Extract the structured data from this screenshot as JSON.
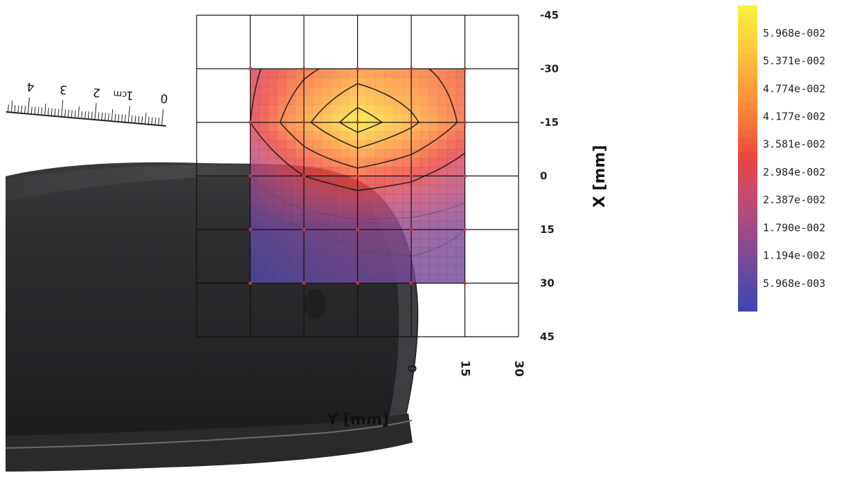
{
  "chart_data": {
    "type": "heatmap",
    "title": "",
    "colormap": [
      "#3d46b6",
      "#5d4aa2",
      "#844b91",
      "#aa4b80",
      "#cc4a6a",
      "#e9443e",
      "#f76f3a",
      "#fb9338",
      "#fdb53a",
      "#fdd63b",
      "#f5f23c"
    ],
    "x_axis": {
      "label": "Y [mm]",
      "ticks": [
        -60,
        -45,
        -30,
        -15,
        0,
        15,
        30
      ],
      "range": [
        -60,
        30
      ]
    },
    "y_axis": {
      "label": "X [mm]",
      "ticks": [
        -45,
        -30,
        -15,
        0,
        15,
        30,
        45
      ],
      "range": [
        -45,
        45
      ]
    },
    "measured_region": {
      "y": [
        -45,
        15
      ],
      "x": [
        -30,
        30
      ]
    },
    "grid": true,
    "y_coords_mm": [
      -45,
      -30,
      -15,
      0,
      15
    ],
    "x_coords_mm": [
      -30,
      -15,
      0,
      15,
      30
    ],
    "values": [
      [
        0.028,
        0.03,
        0.018,
        0.007,
        0.004
      ],
      [
        0.038,
        0.048,
        0.03,
        0.011,
        0.007
      ],
      [
        0.045,
        0.063,
        0.036,
        0.014,
        0.009
      ],
      [
        0.042,
        0.052,
        0.032,
        0.014,
        0.01
      ],
      [
        0.036,
        0.038,
        0.024,
        0.012,
        0.01
      ]
    ],
    "contour_levels": [
      0.012,
      0.018,
      0.03,
      0.04,
      0.05,
      0.058
    ],
    "legend": {
      "position": "right",
      "labels": [
        "5.968e-002",
        "5.371e-002",
        "4.774e-002",
        "4.177e-002",
        "3.581e-002",
        "2.984e-002",
        "2.387e-002",
        "1.790e-002",
        "1.194e-002",
        "5.968e-003"
      ],
      "values": [
        0.05968,
        0.05371,
        0.04774,
        0.04177,
        0.03581,
        0.02984,
        0.02387,
        0.0179,
        0.01194,
        0.005968
      ],
      "range": [
        0,
        0.0656
      ]
    }
  },
  "ruler": {
    "numbers": [
      "0",
      "1",
      "2",
      "3",
      "4"
    ],
    "unit": "cm"
  },
  "background_object": "computer-mouse-photo"
}
